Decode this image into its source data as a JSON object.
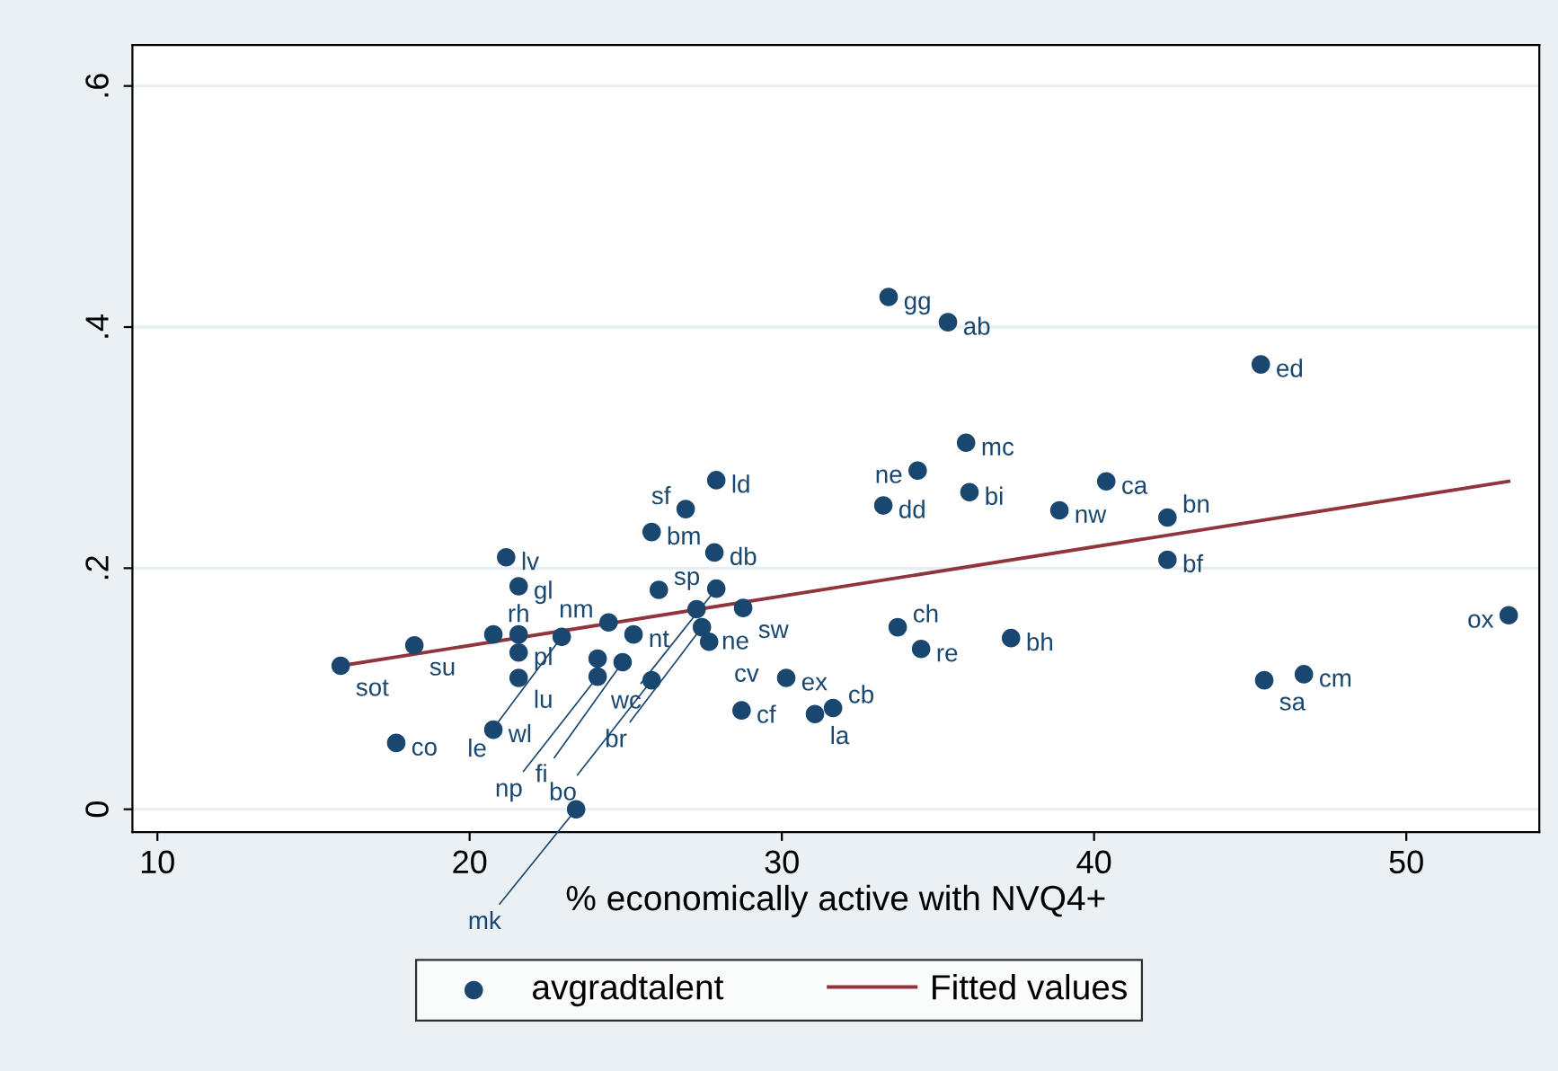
{
  "chart_data": {
    "type": "scatter",
    "xlabel": "% economically active with NVQ4+",
    "xlim": [
      9.2,
      54.26
    ],
    "ylim": [
      -0.019,
      0.634
    ],
    "xticks": [
      10,
      20,
      30,
      40,
      50
    ],
    "yticks": [
      {
        "value": 0,
        "label": "0"
      },
      {
        "value": 0.2,
        "label": ".2"
      },
      {
        "value": 0.4,
        "label": ".4"
      },
      {
        "value": 0.6,
        "label": ".6"
      }
    ],
    "grid": "y",
    "legend": "bottom",
    "marker": "circle",
    "series": [
      {
        "name": "avgradtalent",
        "color": "#1a476f",
        "x": [
          15.87,
          18.23,
          17.65,
          20.76,
          21.17,
          21.57,
          20.76,
          21.57,
          21.57,
          21.57,
          22.95,
          24.45,
          25.25,
          26.06,
          25.83,
          26.92,
          27.9,
          27.84,
          27.9,
          27.27,
          28.76,
          27.44,
          27.67,
          24.1,
          24.9,
          24.1,
          25.83,
          30.14,
          28.71,
          31.06,
          31.64,
          23.41,
          33.42,
          35.32,
          45.34,
          35.9,
          34.35,
          33.25,
          36.01,
          40.39,
          38.89,
          42.35,
          42.35,
          33.71,
          34.46,
          37.34,
          53.28,
          45.45,
          46.72
        ],
        "values": [
          0.119,
          0.136,
          0.055,
          0.066,
          0.209,
          0.185,
          0.145,
          0.145,
          0.13,
          0.109,
          0.143,
          0.155,
          0.145,
          0.182,
          0.23,
          0.249,
          0.273,
          0.213,
          0.183,
          0.166,
          0.167,
          0.151,
          0.139,
          0.125,
          0.122,
          0.11,
          0.107,
          0.109,
          0.082,
          0.079,
          0.084,
          0.0,
          0.425,
          0.404,
          0.369,
          0.304,
          0.281,
          0.252,
          0.263,
          0.272,
          0.248,
          0.242,
          0.207,
          0.151,
          0.133,
          0.142,
          0.161,
          0.107,
          0.112
        ]
      },
      {
        "name": "Fitted values",
        "type": "line",
        "color": "#90353b",
        "marker": "none",
        "line_style": "solid",
        "x": [
          15.87,
          53.28
        ],
        "values": [
          0.119,
          0.272
        ]
      }
    ],
    "annotations": [
      {
        "text": "sot",
        "x": 15.87,
        "y": 0.119
      },
      {
        "text": "su",
        "x": 18.23,
        "y": 0.136
      },
      {
        "text": "co",
        "x": 17.65,
        "y": 0.055
      },
      {
        "text": "wl",
        "x": 20.76,
        "y": 0.066
      },
      {
        "text": "lv",
        "x": 21.17,
        "y": 0.209
      },
      {
        "text": "gl",
        "x": 21.57,
        "y": 0.185
      },
      {
        "text": "rh",
        "x": 21.57,
        "y": 0.145
      },
      {
        "text": "pl",
        "x": 21.57,
        "y": 0.13
      },
      {
        "text": "lu",
        "x": 21.57,
        "y": 0.109
      },
      {
        "text": "le",
        "x": 22.95,
        "y": 0.143
      },
      {
        "text": "nm",
        "x": 24.45,
        "y": 0.155
      },
      {
        "text": "nt",
        "x": 25.25,
        "y": 0.145
      },
      {
        "text": "sp",
        "x": 26.06,
        "y": 0.182
      },
      {
        "text": "bm",
        "x": 25.83,
        "y": 0.23
      },
      {
        "text": "sf",
        "x": 26.92,
        "y": 0.249
      },
      {
        "text": "ld",
        "x": 27.9,
        "y": 0.273
      },
      {
        "text": "db",
        "x": 27.84,
        "y": 0.213
      },
      {
        "text": "wc",
        "x": 27.9,
        "y": 0.183
      },
      {
        "text": "ne",
        "x": 27.27,
        "y": 0.166
      },
      {
        "text": "sw",
        "x": 28.76,
        "y": 0.167
      },
      {
        "text": "br",
        "x": 27.44,
        "y": 0.151
      },
      {
        "text": "cv",
        "x": 27.67,
        "y": 0.139
      },
      {
        "text": "fi",
        "x": 24.9,
        "y": 0.122
      },
      {
        "text": "np",
        "x": 24.1,
        "y": 0.11
      },
      {
        "text": "bo",
        "x": 25.83,
        "y": 0.107
      },
      {
        "text": "ex",
        "x": 30.14,
        "y": 0.109
      },
      {
        "text": "cf",
        "x": 28.71,
        "y": 0.082
      },
      {
        "text": "la",
        "x": 31.06,
        "y": 0.079
      },
      {
        "text": "cb",
        "x": 31.64,
        "y": 0.084
      },
      {
        "text": "mk",
        "x": 23.41,
        "y": 0.0
      },
      {
        "text": "gg",
        "x": 33.42,
        "y": 0.425
      },
      {
        "text": "ab",
        "x": 35.32,
        "y": 0.404
      },
      {
        "text": "ed",
        "x": 45.34,
        "y": 0.369
      },
      {
        "text": "mc",
        "x": 35.9,
        "y": 0.304
      },
      {
        "text": "ne",
        "x": 34.35,
        "y": 0.281
      },
      {
        "text": "dd",
        "x": 33.25,
        "y": 0.252
      },
      {
        "text": "bi",
        "x": 36.01,
        "y": 0.263
      },
      {
        "text": "ca",
        "x": 40.39,
        "y": 0.272
      },
      {
        "text": "nw",
        "x": 38.89,
        "y": 0.248
      },
      {
        "text": "bn",
        "x": 42.35,
        "y": 0.242
      },
      {
        "text": "bf",
        "x": 42.35,
        "y": 0.207
      },
      {
        "text": "ch",
        "x": 33.71,
        "y": 0.151
      },
      {
        "text": "re",
        "x": 34.46,
        "y": 0.133
      },
      {
        "text": "bh",
        "x": 37.34,
        "y": 0.142
      },
      {
        "text": "ox",
        "x": 53.28,
        "y": 0.161
      },
      {
        "text": "sa",
        "x": 45.45,
        "y": 0.107
      },
      {
        "text": "cm",
        "x": 46.72,
        "y": 0.112
      }
    ]
  }
}
